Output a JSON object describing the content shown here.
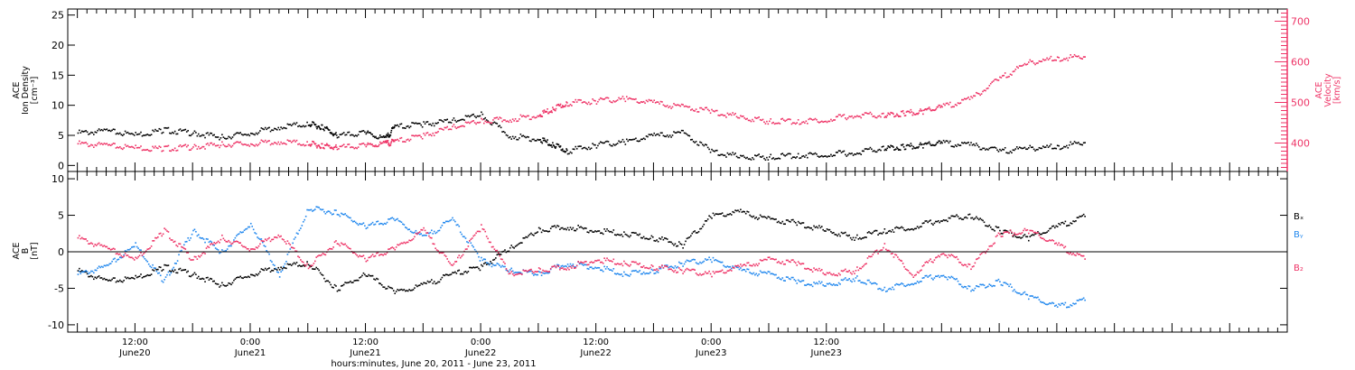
{
  "chart_data": [
    {
      "type": "scatter",
      "ylabel_lines": [
        "ACE",
        "Ion Density",
        "[cm⁻³]"
      ],
      "ylim": [
        -1,
        26
      ],
      "yticks": [
        "0",
        "5",
        "10",
        "15",
        "20",
        "25"
      ],
      "y2label_lines": [
        "ACE",
        "Velocity",
        "[km/s]"
      ],
      "y2lim": [
        330,
        730
      ],
      "y2ticks": [
        "400",
        "500",
        "600",
        "700"
      ],
      "colors": {
        "density": "#000000",
        "velocity": "#ee3366"
      },
      "series": [
        {
          "key": "density",
          "axis": "left",
          "x": [
            0,
            6,
            12,
            18,
            24,
            30,
            36,
            42,
            48,
            51,
            54,
            60,
            64,
            66,
            72,
            78,
            84,
            90,
            96,
            99,
            102,
            108,
            114,
            120,
            126,
            132,
            138,
            144,
            150,
            156,
            162,
            168,
            172,
            176,
            180,
            186,
            192,
            198,
            204,
            210
          ],
          "y": [
            5.5,
            5.8,
            5.2,
            6.0,
            5.5,
            4.8,
            5.5,
            6.5,
            7.0,
            6.5,
            5.0,
            5.5,
            4.5,
            6.5,
            7.0,
            7.5,
            8.5,
            5.0,
            4.5,
            3.5,
            2.5,
            3.5,
            4.0,
            5.0,
            5.5,
            2.5,
            1.5,
            1.5,
            1.8,
            2.0,
            2.2,
            3.0,
            3.2,
            3.5,
            3.8,
            3.5,
            2.5,
            3.0,
            3.2,
            4.0
          ]
        },
        {
          "key": "velocity",
          "axis": "right",
          "x": [
            0,
            6,
            12,
            18,
            24,
            30,
            36,
            42,
            48,
            51,
            54,
            60,
            64,
            66,
            72,
            78,
            84,
            90,
            96,
            99,
            102,
            108,
            114,
            120,
            126,
            132,
            138,
            144,
            150,
            156,
            162,
            168,
            172,
            176,
            180,
            186,
            192,
            198,
            204,
            210
          ],
          "y": [
            400,
            395,
            390,
            388,
            392,
            398,
            400,
            405,
            400,
            395,
            390,
            395,
            400,
            405,
            420,
            440,
            455,
            460,
            470,
            485,
            500,
            505,
            510,
            500,
            490,
            480,
            465,
            455,
            455,
            460,
            470,
            470,
            475,
            480,
            490,
            510,
            560,
            600,
            610,
            615
          ]
        }
      ]
    },
    {
      "type": "scatter",
      "ylabel_lines": [
        "ACE",
        "B",
        "[nT]"
      ],
      "ylim": [
        -11,
        11
      ],
      "yticks": [
        "10",
        "5",
        "0",
        "-5",
        "-10"
      ],
      "legend": [
        "Bₓ",
        "Bᵧ",
        "B₂"
      ],
      "colors": {
        "Bx": "#000000",
        "By": "#2288ee",
        "Bz": "#ee3366"
      },
      "series": [
        {
          "key": "Bx",
          "x": [
            0,
            6,
            12,
            18,
            24,
            30,
            36,
            42,
            48,
            54,
            60,
            66,
            72,
            78,
            84,
            90,
            96,
            102,
            108,
            114,
            120,
            126,
            132,
            138,
            144,
            150,
            156,
            162,
            168,
            174,
            180,
            186,
            192,
            198,
            204,
            210
          ],
          "y": [
            -2.5,
            -4.0,
            -3.5,
            -2.0,
            -3.0,
            -4.5,
            -3.0,
            -2.0,
            -1.5,
            -5.0,
            -3.0,
            -5.5,
            -4.5,
            -3.0,
            -2.0,
            0.5,
            3.0,
            3.5,
            3.0,
            2.5,
            2.0,
            1.0,
            5.0,
            5.5,
            4.5,
            4.0,
            3.0,
            2.0,
            3.0,
            3.5,
            4.5,
            5.0,
            3.0,
            2.0,
            3.5,
            5.0
          ]
        },
        {
          "key": "By",
          "x": [
            0,
            6,
            12,
            18,
            24,
            30,
            36,
            42,
            48,
            54,
            60,
            66,
            72,
            78,
            84,
            90,
            96,
            102,
            108,
            114,
            120,
            126,
            132,
            138,
            144,
            150,
            156,
            162,
            168,
            174,
            180,
            186,
            192,
            198,
            204,
            210
          ],
          "y": [
            -3.0,
            -2.0,
            1.0,
            -4.0,
            3.0,
            0.0,
            4.0,
            -3.0,
            6.0,
            5.5,
            3.5,
            4.5,
            2.0,
            4.5,
            -1.0,
            -2.5,
            -3.0,
            -1.5,
            -2.0,
            -3.0,
            -2.5,
            -1.5,
            -1.0,
            -2.5,
            -3.0,
            -4.0,
            -4.5,
            -3.5,
            -5.0,
            -4.0,
            -3.0,
            -5.0,
            -4.0,
            -6.0,
            -7.5,
            -6.5
          ]
        },
        {
          "key": "Bz",
          "x": [
            0,
            6,
            12,
            18,
            24,
            30,
            36,
            42,
            48,
            54,
            60,
            66,
            72,
            78,
            84,
            90,
            96,
            102,
            108,
            114,
            120,
            126,
            132,
            138,
            144,
            150,
            156,
            162,
            168,
            174,
            180,
            186,
            192,
            198,
            204,
            210
          ],
          "y": [
            2.0,
            0.5,
            -1.0,
            3.0,
            -1.0,
            2.0,
            0.5,
            2.5,
            -2.0,
            1.5,
            -1.0,
            0.5,
            3.0,
            -2.0,
            3.5,
            -3.0,
            -2.5,
            -2.0,
            -1.0,
            -1.5,
            -2.0,
            -2.5,
            -3.0,
            -2.0,
            -1.0,
            -1.5,
            -3.0,
            -2.5,
            1.0,
            -3.0,
            0.0,
            -2.0,
            2.5,
            3.0,
            1.0,
            -1.0
          ]
        }
      ]
    }
  ],
  "x_axis": {
    "xlim": [
      -2,
      252
    ],
    "label": "hours:minutes, June 20, 2011 - June 23, 2011",
    "ticks": [
      {
        "x": 12,
        "time": "12:00",
        "date": "June20"
      },
      {
        "x": 36,
        "time": "0:00",
        "date": "June21"
      },
      {
        "x": 60,
        "time": "12:00",
        "date": "June21"
      },
      {
        "x": 84,
        "time": "0:00",
        "date": "June22"
      },
      {
        "x": 108,
        "time": "12:00",
        "date": "June22"
      },
      {
        "x": 132,
        "time": "0:00",
        "date": "June23"
      },
      {
        "x": 156,
        "time": "12:00",
        "date": "June23"
      }
    ]
  }
}
